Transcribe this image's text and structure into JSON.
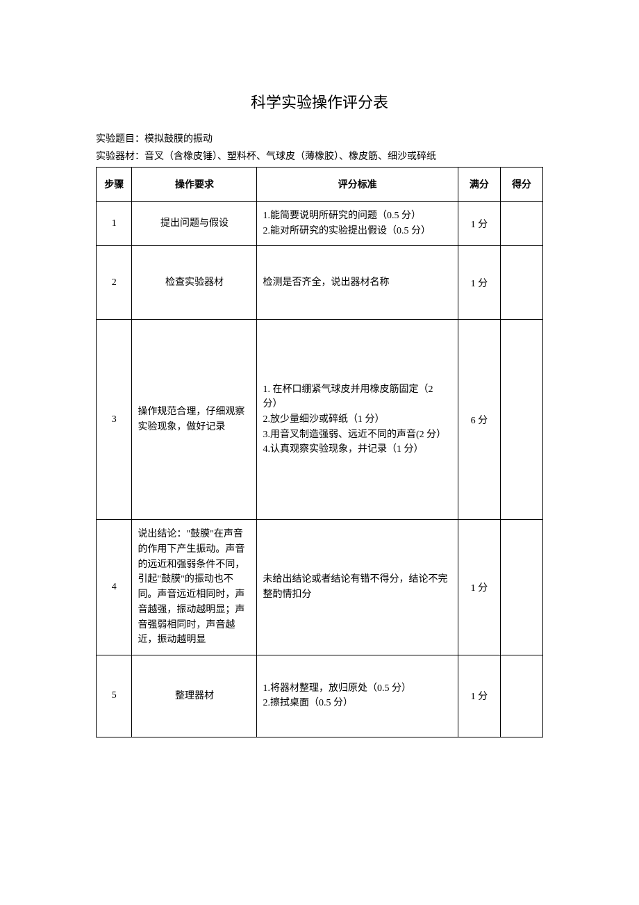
{
  "document": {
    "title": "科学实验操作评分表",
    "experiment_title_label": "实验题目：",
    "experiment_title": "模拟鼓膜的振动",
    "materials_label": "实验器材：",
    "materials": "音叉（含橡皮锤）、塑料杯、气球皮（薄橡胶）、橡皮筋、细沙或碎纸",
    "table": {
      "columns": [
        "步骤",
        "操作要求",
        "评分标准",
        "满分",
        "得分"
      ],
      "rows": [
        {
          "step": "1",
          "requirement": "提出问题与假设",
          "requirement_align": "center",
          "criteria": "1.能简要说明所研究的问题（0.5 分）\n2.能对所研究的实验提出假设（0.5 分）",
          "full_score": "1 分",
          "row_class": "tall-1"
        },
        {
          "step": "2",
          "requirement": "检查实验器材",
          "requirement_align": "center",
          "criteria": "检测是否齐全，说出器材名称",
          "criteria_align": "center",
          "full_score": "1 分",
          "row_class": "tall-2"
        },
        {
          "step": "3",
          "requirement": "操作规范合理，仔细观察实验现象，做好记录",
          "requirement_align": "left",
          "criteria": "1. 在杯口绷紧气球皮并用橡皮筋固定（2 分）\n2.放少量细沙或碎纸（1 分）\n3.用音叉制造强弱、远近不同的声音(2 分）\n4.认真观察实验现象，并记录（1 分）",
          "full_score": "6 分",
          "row_class": "tall-3"
        },
        {
          "step": "4",
          "requirement": "说出结论：\"鼓膜\"在声音的作用下产生振动。声音的远近和强弱条件不同，引起\"鼓膜\"的振动也不同。声音远近相同时，声音越强，振动越明显；声音强弱相同时，声音越近，振动越明显",
          "requirement_align": "left",
          "criteria": "未给出结论或者结论有错不得分，结论不完整酌情扣分",
          "full_score": "1 分",
          "row_class": "tall-4"
        },
        {
          "step": "5",
          "requirement": "整理器材",
          "requirement_align": "center",
          "criteria": "1.将器材整理，放归原处（0.5 分）\n2.擦拭桌面（0.5 分）",
          "full_score": "1 分",
          "row_class": "tall-5"
        }
      ]
    },
    "styles": {
      "page_bg": "#ffffff",
      "border_color": "#000000",
      "title_fontsize": 22,
      "body_fontsize": 14,
      "font_family": "SimSun"
    }
  }
}
